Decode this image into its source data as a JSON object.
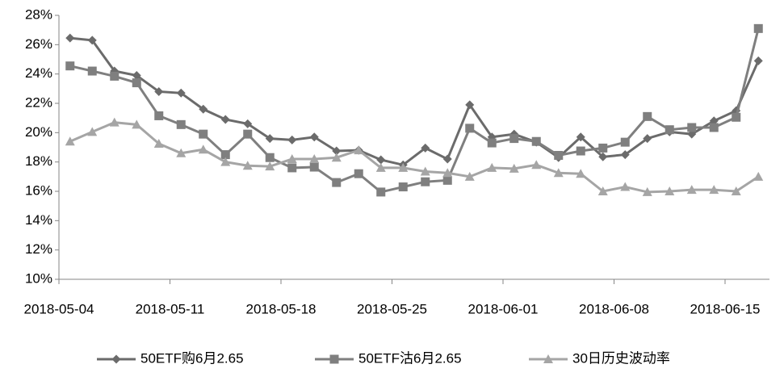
{
  "chart_data": {
    "type": "line",
    "categories": [
      "2018-05-04",
      null,
      null,
      null,
      null,
      "2018-05-11",
      null,
      null,
      null,
      null,
      "2018-05-18",
      null,
      null,
      null,
      null,
      "2018-05-25",
      null,
      null,
      null,
      null,
      "2018-06-01",
      null,
      null,
      null,
      null,
      "2018-06-08",
      null,
      null,
      null,
      null,
      "2018-06-15",
      null
    ],
    "series": [
      {
        "name": "50ETF购6月2.65",
        "color": "#6b6b6b",
        "marker": "diamond",
        "values": [
          26.45,
          26.3,
          24.2,
          23.9,
          22.8,
          22.7,
          21.6,
          20.9,
          20.6,
          19.6,
          19.5,
          19.7,
          18.75,
          18.8,
          18.15,
          17.8,
          18.95,
          18.2,
          21.9,
          19.7,
          19.9,
          19.35,
          18.3,
          19.7,
          18.35,
          18.5,
          19.6,
          20.05,
          19.9,
          20.8,
          21.5,
          24.9
        ]
      },
      {
        "name": "50ETF沽6月2.65",
        "color": "#7f7f7f",
        "marker": "square",
        "values": [
          24.55,
          24.2,
          23.85,
          23.4,
          21.15,
          20.55,
          19.9,
          18.5,
          19.9,
          18.3,
          17.6,
          17.65,
          16.6,
          17.2,
          15.95,
          16.3,
          16.65,
          16.75,
          20.3,
          19.3,
          19.6,
          19.4,
          18.45,
          18.75,
          18.95,
          19.35,
          21.1,
          20.2,
          20.35,
          20.35,
          21.05,
          27.1
        ]
      },
      {
        "name": "30日历史波动率",
        "color": "#a5a5a5",
        "marker": "triangle",
        "values": [
          19.4,
          20.05,
          20.7,
          20.55,
          19.25,
          18.6,
          18.85,
          18.0,
          17.75,
          17.7,
          18.2,
          18.2,
          18.3,
          18.8,
          17.6,
          17.6,
          17.35,
          17.25,
          17.0,
          17.6,
          17.55,
          17.8,
          17.25,
          17.2,
          16.0,
          16.3,
          15.95,
          16.0,
          16.1,
          16.1,
          16.0,
          17.0
        ]
      }
    ],
    "ylim": [
      10,
      28
    ],
    "yticks": [
      {
        "value": 10,
        "label": "10%"
      },
      {
        "value": 12,
        "label": "12%"
      },
      {
        "value": 14,
        "label": "14%"
      },
      {
        "value": 16,
        "label": "16%"
      },
      {
        "value": 18,
        "label": "18%"
      },
      {
        "value": 20,
        "label": "20%"
      },
      {
        "value": 22,
        "label": "22%"
      },
      {
        "value": 24,
        "label": "24%"
      },
      {
        "value": 26,
        "label": "26%"
      },
      {
        "value": 28,
        "label": "28%"
      }
    ],
    "legend": "bottom"
  }
}
